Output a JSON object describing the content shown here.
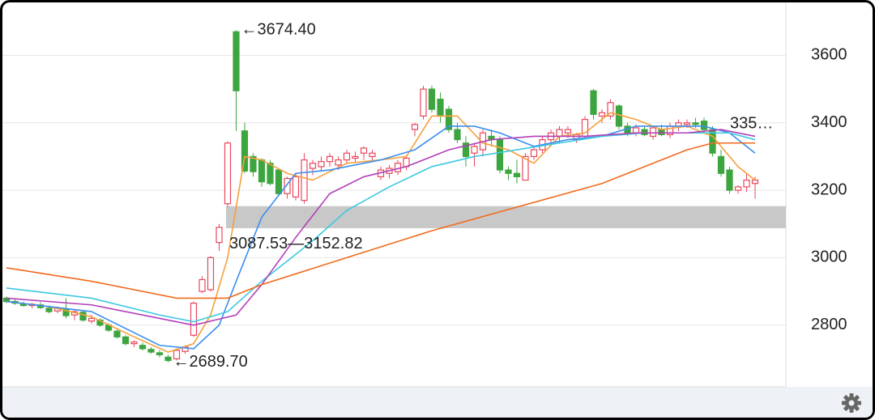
{
  "chart_data": {
    "type": "candlestick",
    "open": [
      2880,
      2870,
      2862,
      2858,
      2860,
      2850,
      2842,
      2848,
      2830,
      2838,
      2812,
      2815,
      2800,
      2782,
      2765,
      2745,
      2740,
      2728,
      2718,
      2705,
      2700,
      2722,
      2770,
      2900,
      2905,
      3045,
      3160,
      3670,
      3376,
      3300,
      3290,
      3280,
      3260,
      3190,
      3180,
      3170,
      3265,
      3270,
      3285,
      3275,
      3290,
      3295,
      3310,
      3300,
      3240,
      3250,
      3255,
      3270,
      3380,
      3420,
      3500,
      3470,
      3440,
      3380,
      3340,
      3310,
      3320,
      3360,
      3350,
      3260,
      3250,
      3230,
      3300,
      3320,
      3350,
      3360,
      3370,
      3350,
      3360,
      3495,
      3420,
      3420,
      3450,
      3390,
      3370,
      3380,
      3360,
      3380,
      3365,
      3390,
      3395,
      3400,
      3405,
      3380,
      3300,
      3260,
      3200,
      3210,
      3220
    ],
    "high": [
      2885,
      2878,
      2870,
      2866,
      2868,
      2858,
      2855,
      2880,
      2845,
      2842,
      2830,
      2820,
      2806,
      2790,
      2770,
      2755,
      2748,
      2735,
      2726,
      2712,
      2730,
      2740,
      2870,
      2945,
      3005,
      3100,
      3345,
      3674.4,
      3400,
      3310,
      3295,
      3290,
      3265,
      3240,
      3250,
      3310,
      3290,
      3300,
      3310,
      3300,
      3320,
      3315,
      3330,
      3320,
      3270,
      3275,
      3290,
      3300,
      3400,
      3510,
      3510,
      3490,
      3450,
      3400,
      3360,
      3340,
      3380,
      3380,
      3360,
      3270,
      3290,
      3310,
      3330,
      3360,
      3380,
      3390,
      3390,
      3370,
      3420,
      3500,
      3440,
      3470,
      3455,
      3400,
      3395,
      3390,
      3390,
      3395,
      3400,
      3410,
      3410,
      3415,
      3415,
      3390,
      3320,
      3270,
      3215,
      3250,
      3240
    ],
    "low": [
      2865,
      2860,
      2855,
      2850,
      2848,
      2835,
      2835,
      2820,
      2815,
      2810,
      2805,
      2795,
      2780,
      2760,
      2740,
      2735,
      2725,
      2715,
      2705,
      2689.7,
      2695,
      2715,
      2765,
      2895,
      2900,
      3020,
      3150,
      3376,
      3250,
      3240,
      3210,
      3215,
      3185,
      3175,
      3170,
      3160,
      3245,
      3255,
      3270,
      3260,
      3280,
      3280,
      3290,
      3285,
      3230,
      3235,
      3245,
      3260,
      3360,
      3410,
      3430,
      3400,
      3370,
      3340,
      3270,
      3270,
      3300,
      3330,
      3250,
      3230,
      3220,
      3230,
      3290,
      3310,
      3330,
      3340,
      3355,
      3340,
      3355,
      3410,
      3400,
      3410,
      3380,
      3360,
      3360,
      3360,
      3350,
      3360,
      3355,
      3375,
      3385,
      3385,
      3370,
      3300,
      3240,
      3190,
      3190,
      3195,
      3175
    ],
    "close": [
      2870,
      2865,
      2858,
      2862,
      2852,
      2840,
      2850,
      2828,
      2840,
      2815,
      2820,
      2800,
      2785,
      2765,
      2745,
      2750,
      2730,
      2720,
      2712,
      2695,
      2725,
      2735,
      2865,
      2935,
      3000,
      3090,
      3340,
      3495,
      3257,
      3255,
      3225,
      3220,
      3190,
      3235,
      3240,
      3290,
      3280,
      3285,
      3300,
      3290,
      3310,
      3300,
      3325,
      3310,
      3260,
      3265,
      3280,
      3295,
      3395,
      3500,
      3440,
      3420,
      3380,
      3350,
      3300,
      3330,
      3370,
      3350,
      3260,
      3250,
      3240,
      3300,
      3320,
      3350,
      3370,
      3380,
      3380,
      3365,
      3410,
      3425,
      3430,
      3460,
      3390,
      3370,
      3385,
      3365,
      3385,
      3365,
      3390,
      3400,
      3400,
      3395,
      3380,
      3310,
      3250,
      3200,
      3210,
      3230,
      3230
    ],
    "up_color": "#e8475c",
    "down_color": "#3da53f",
    "series": [
      {
        "color": "#f5a03c",
        "x": [
          0,
          5,
          10,
          15,
          19,
          22,
          24,
          26,
          28,
          30,
          33,
          36,
          40,
          44,
          47,
          50,
          53,
          56,
          59,
          62,
          65,
          68,
          71,
          74,
          77,
          80,
          83,
          86,
          88
        ],
        "values": [
          2870,
          2855,
          2825,
          2765,
          2720,
          2745,
          2830,
          3000,
          3300,
          3290,
          3250,
          3230,
          3280,
          3290,
          3300,
          3420,
          3420,
          3340,
          3320,
          3280,
          3360,
          3370,
          3430,
          3410,
          3380,
          3390,
          3360,
          3270,
          3230
        ]
      },
      {
        "color": "#3a8fef",
        "x": [
          0,
          10,
          18,
          22,
          25,
          27,
          30,
          34,
          38,
          44,
          48,
          52,
          55,
          58,
          62,
          66,
          70,
          74,
          78,
          82,
          85,
          88
        ],
        "values": [
          2870,
          2840,
          2740,
          2730,
          2800,
          2930,
          3120,
          3250,
          3260,
          3290,
          3320,
          3390,
          3390,
          3370,
          3330,
          3350,
          3360,
          3390,
          3390,
          3390,
          3370,
          3310
        ]
      },
      {
        "color": "#3cc8e0",
        "x": [
          0,
          10,
          18,
          22,
          26,
          30,
          36,
          40,
          45,
          50,
          55,
          60,
          65,
          70,
          75,
          80,
          85,
          88
        ],
        "values": [
          2910,
          2880,
          2830,
          2810,
          2840,
          2930,
          3050,
          3140,
          3210,
          3270,
          3300,
          3320,
          3340,
          3360,
          3370,
          3370,
          3370,
          3350
        ]
      },
      {
        "color": "#b23fb8",
        "x": [
          0,
          10,
          18,
          22,
          27,
          30,
          34,
          38,
          42,
          47,
          52,
          57,
          62,
          68,
          74,
          80,
          84,
          88
        ],
        "values": [
          2880,
          2860,
          2820,
          2800,
          2830,
          2920,
          3060,
          3190,
          3240,
          3270,
          3320,
          3350,
          3360,
          3360,
          3370,
          3370,
          3380,
          3360
        ]
      },
      {
        "color": "#f26a1b",
        "x": [
          0,
          10,
          20,
          26,
          30,
          40,
          50,
          60,
          70,
          76,
          80,
          83,
          88
        ],
        "values": [
          2970,
          2930,
          2880,
          2880,
          2920,
          3000,
          3080,
          3150,
          3220,
          3280,
          3320,
          3340,
          3340
        ]
      }
    ],
    "ylim": [
      2617,
      3757
    ],
    "yticks": [
      2800,
      3000,
      3200,
      3400,
      3600
    ],
    "grid": true,
    "annotations": {
      "high": {
        "label": "←3674.40",
        "value": 3674.4
      },
      "low": {
        "label": "←2689.70",
        "value": 2689.7
      },
      "band": {
        "label": "3087.53—3152.82",
        "low": 3087.53,
        "high": 3152.82
      },
      "last": {
        "label": "335…"
      }
    }
  }
}
